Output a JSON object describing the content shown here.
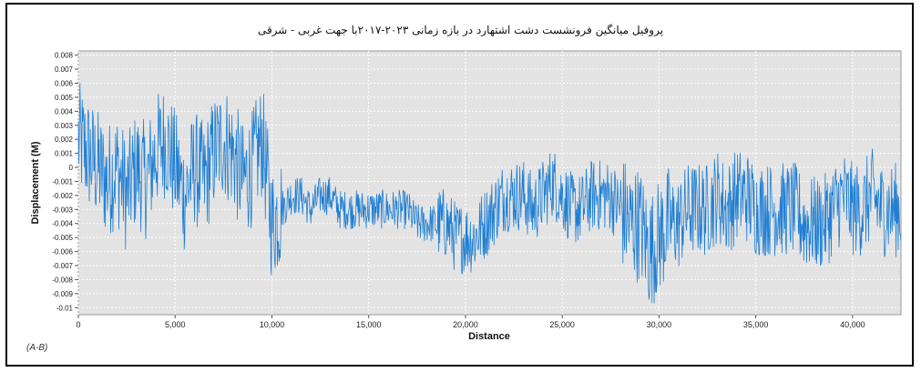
{
  "chart_data": {
    "type": "line",
    "title": "پروفیل میانگین فرونشست دشت اشتهارد در بازه زمانی ۲۰۲۳-۲۰۱۷با جهت غربی - شرقی",
    "xlabel": "Distance",
    "ylabel": "Displacement (M)",
    "xlim": [
      0,
      42500
    ],
    "ylim": [
      -0.0105,
      0.0083
    ],
    "xticks": [
      0,
      5000,
      10000,
      15000,
      20000,
      25000,
      30000,
      35000,
      40000
    ],
    "xtick_labels": [
      "0",
      "5,000",
      "10,000",
      "15,000",
      "20,000",
      "25,000",
      "30,000",
      "35,000",
      "40,000"
    ],
    "yticks": [
      0.008,
      0.007,
      0.006,
      0.005,
      0.004,
      0.003,
      0.002,
      0.001,
      0,
      -0.001,
      -0.002,
      -0.003,
      -0.004,
      -0.005,
      -0.006,
      -0.007,
      -0.008,
      -0.009,
      -0.01
    ],
    "ytick_labels": [
      "0.008",
      "0.007",
      "0.006",
      "0.005",
      "0.004",
      "0.003",
      "0.002",
      "0.001",
      "0",
      "-0.001",
      "-0.002",
      "-0.003",
      "-0.004",
      "-0.005",
      "-0.006",
      "-0.007",
      "-0.008",
      "-0.009",
      "-0.01"
    ],
    "grid": true,
    "line_color": "#1f7fd4",
    "plot_background": "#e3e3e3",
    "series": [
      {
        "x": [
          0,
          500,
          1000,
          1500,
          2000,
          2500,
          3000,
          3500,
          4000,
          4500,
          5000,
          5500,
          6000,
          6500,
          7000,
          7500,
          8000,
          8500,
          9000,
          9500,
          10000,
          10500,
          11000,
          11500,
          12000,
          12500,
          13000,
          13500,
          14000,
          14500,
          15000,
          15500,
          16000,
          16500,
          17000,
          17500,
          18000,
          18500,
          19000,
          19500,
          20000,
          20500,
          21000,
          21500,
          22000,
          22500,
          23000,
          23500,
          24000,
          24500,
          25000,
          25500,
          26000,
          26500,
          27000,
          27500,
          28000,
          28500,
          29000,
          29500,
          30000,
          30500,
          31000,
          31500,
          32000,
          32500,
          33000,
          33500,
          34000,
          34500,
          35000,
          35500,
          36000,
          36500,
          37000,
          37500,
          38000,
          38500,
          39000,
          39500,
          40000,
          40500,
          41000,
          41500,
          42000,
          42500
        ],
        "values": [
          0.002,
          0.001,
          0.0,
          -0.001,
          0.0,
          -0.002,
          0.0,
          -0.001,
          0.001,
          0.002,
          0.0,
          -0.002,
          0.0,
          -0.001,
          0.001,
          0.002,
          0.001,
          -0.001,
          0.0,
          0.002,
          -0.004,
          -0.003,
          -0.002,
          -0.002,
          -0.003,
          -0.002,
          -0.002,
          -0.003,
          -0.003,
          -0.003,
          -0.003,
          -0.003,
          -0.003,
          -0.003,
          -0.003,
          -0.004,
          -0.004,
          -0.004,
          -0.004,
          -0.005,
          -0.005,
          -0.005,
          -0.004,
          -0.003,
          -0.002,
          -0.002,
          -0.002,
          -0.003,
          -0.002,
          -0.001,
          -0.002,
          -0.003,
          -0.003,
          -0.002,
          -0.002,
          -0.002,
          -0.003,
          -0.004,
          -0.004,
          -0.006,
          -0.005,
          -0.004,
          -0.004,
          -0.003,
          -0.003,
          -0.003,
          -0.002,
          -0.003,
          -0.002,
          -0.002,
          -0.003,
          -0.003,
          -0.003,
          -0.003,
          -0.003,
          -0.004,
          -0.004,
          -0.004,
          -0.003,
          -0.002,
          -0.003,
          -0.003,
          -0.002,
          -0.003,
          -0.003,
          -0.003
        ]
      }
    ]
  },
  "caption": "(A-B)"
}
